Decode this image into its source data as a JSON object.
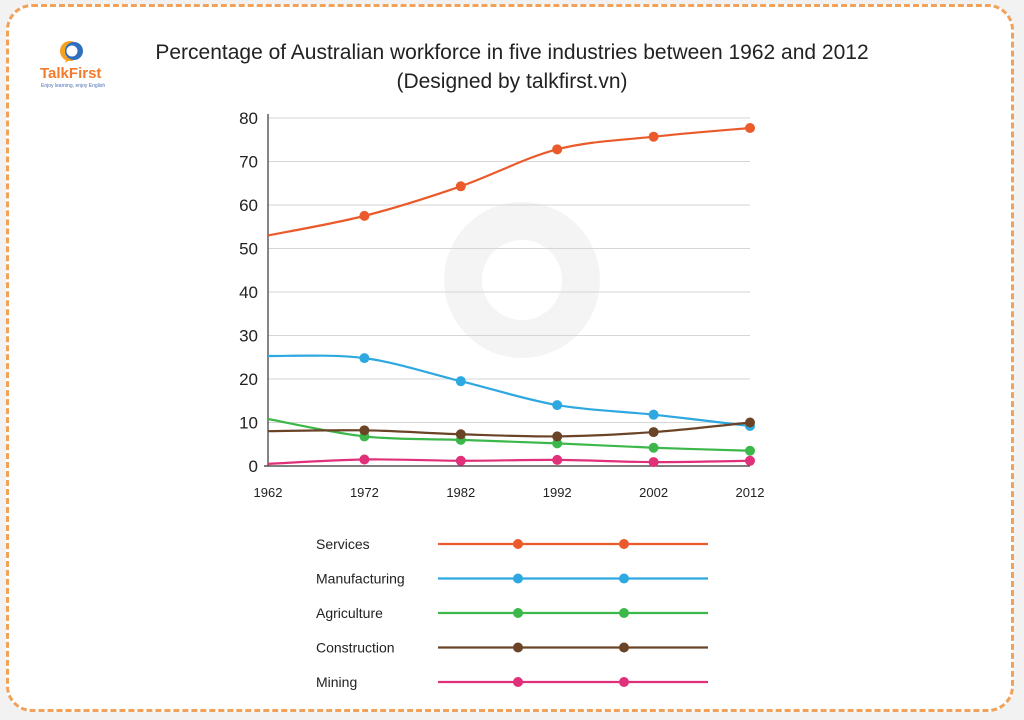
{
  "logo": {
    "name": "TalkFirst",
    "tagline": "Enjoy learning, enjoy English"
  },
  "title_line1": "Percentage of Australian workforce in five industries between 1962 and 2012",
  "title_line2": "(Designed by talkfirst.vn)",
  "chart_data": {
    "type": "line",
    "title": "Percentage of Australian workforce in five industries between 1962 and 2012",
    "subtitle": "(Designed by talkfirst.vn)",
    "xlabel": "",
    "ylabel": "",
    "x": [
      1962,
      1972,
      1982,
      1992,
      2002,
      2012
    ],
    "xlim": [
      1962,
      2012
    ],
    "ylim": [
      0,
      80
    ],
    "yticks": [
      0,
      10,
      20,
      30,
      40,
      50,
      60,
      70,
      80
    ],
    "xticks": [
      "1962",
      "1972",
      "1982",
      "1992",
      "2002",
      "2012"
    ],
    "grid": true,
    "legend_position": "bottom",
    "series": [
      {
        "name": "Services",
        "color": "#ea5a2a",
        "values": [
          53,
          57.5,
          64.3,
          72.8,
          75.7,
          77.7
        ]
      },
      {
        "name": "Manufacturing",
        "color": "#2ea8e0",
        "values": [
          25.3,
          24.8,
          19.5,
          14,
          11.8,
          9.2
        ]
      },
      {
        "name": "Agriculture",
        "color": "#3cb84a",
        "values": [
          10.8,
          6.8,
          6,
          5.2,
          4.2,
          3.5
        ]
      },
      {
        "name": "Construction",
        "color": "#6b4428",
        "values": [
          8,
          8.2,
          7.3,
          6.8,
          7.8,
          10
        ]
      },
      {
        "name": "Mining",
        "color": "#e0307a",
        "values": [
          0.5,
          1.5,
          1.2,
          1.4,
          0.9,
          1.2
        ]
      }
    ]
  }
}
